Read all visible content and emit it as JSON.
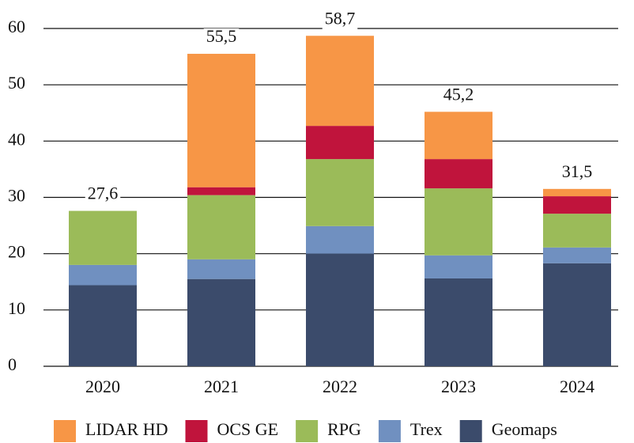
{
  "chart_data": {
    "type": "stacked_bar",
    "categories": [
      "2020",
      "2021",
      "2022",
      "2023",
      "2024"
    ],
    "series": [
      {
        "name": "Geomaps",
        "color": "#3b4b6b",
        "values": [
          14.4,
          15.5,
          20.0,
          15.6,
          18.3
        ]
      },
      {
        "name": "Trex",
        "color": "#7090c0",
        "values": [
          3.6,
          3.5,
          4.9,
          4.1,
          2.8
        ]
      },
      {
        "name": "RPG",
        "color": "#9bbb59",
        "values": [
          9.6,
          11.4,
          11.9,
          11.9,
          6.0
        ]
      },
      {
        "name": "OCS GE",
        "color": "#c0143c",
        "values": [
          0,
          1.4,
          5.9,
          5.2,
          3.1
        ]
      },
      {
        "name": "LIDAR HD",
        "color": "#f79646",
        "values": [
          0,
          23.7,
          16.0,
          8.4,
          1.3
        ]
      }
    ],
    "totals": [
      27.6,
      55.5,
      58.7,
      45.2,
      31.5
    ],
    "total_labels": [
      "27,6",
      "55,5",
      "58,7",
      "45,2",
      "31,5"
    ],
    "ylim": [
      0,
      60
    ],
    "yticks": [
      0,
      10,
      20,
      30,
      40,
      50,
      60
    ],
    "grid": true
  }
}
